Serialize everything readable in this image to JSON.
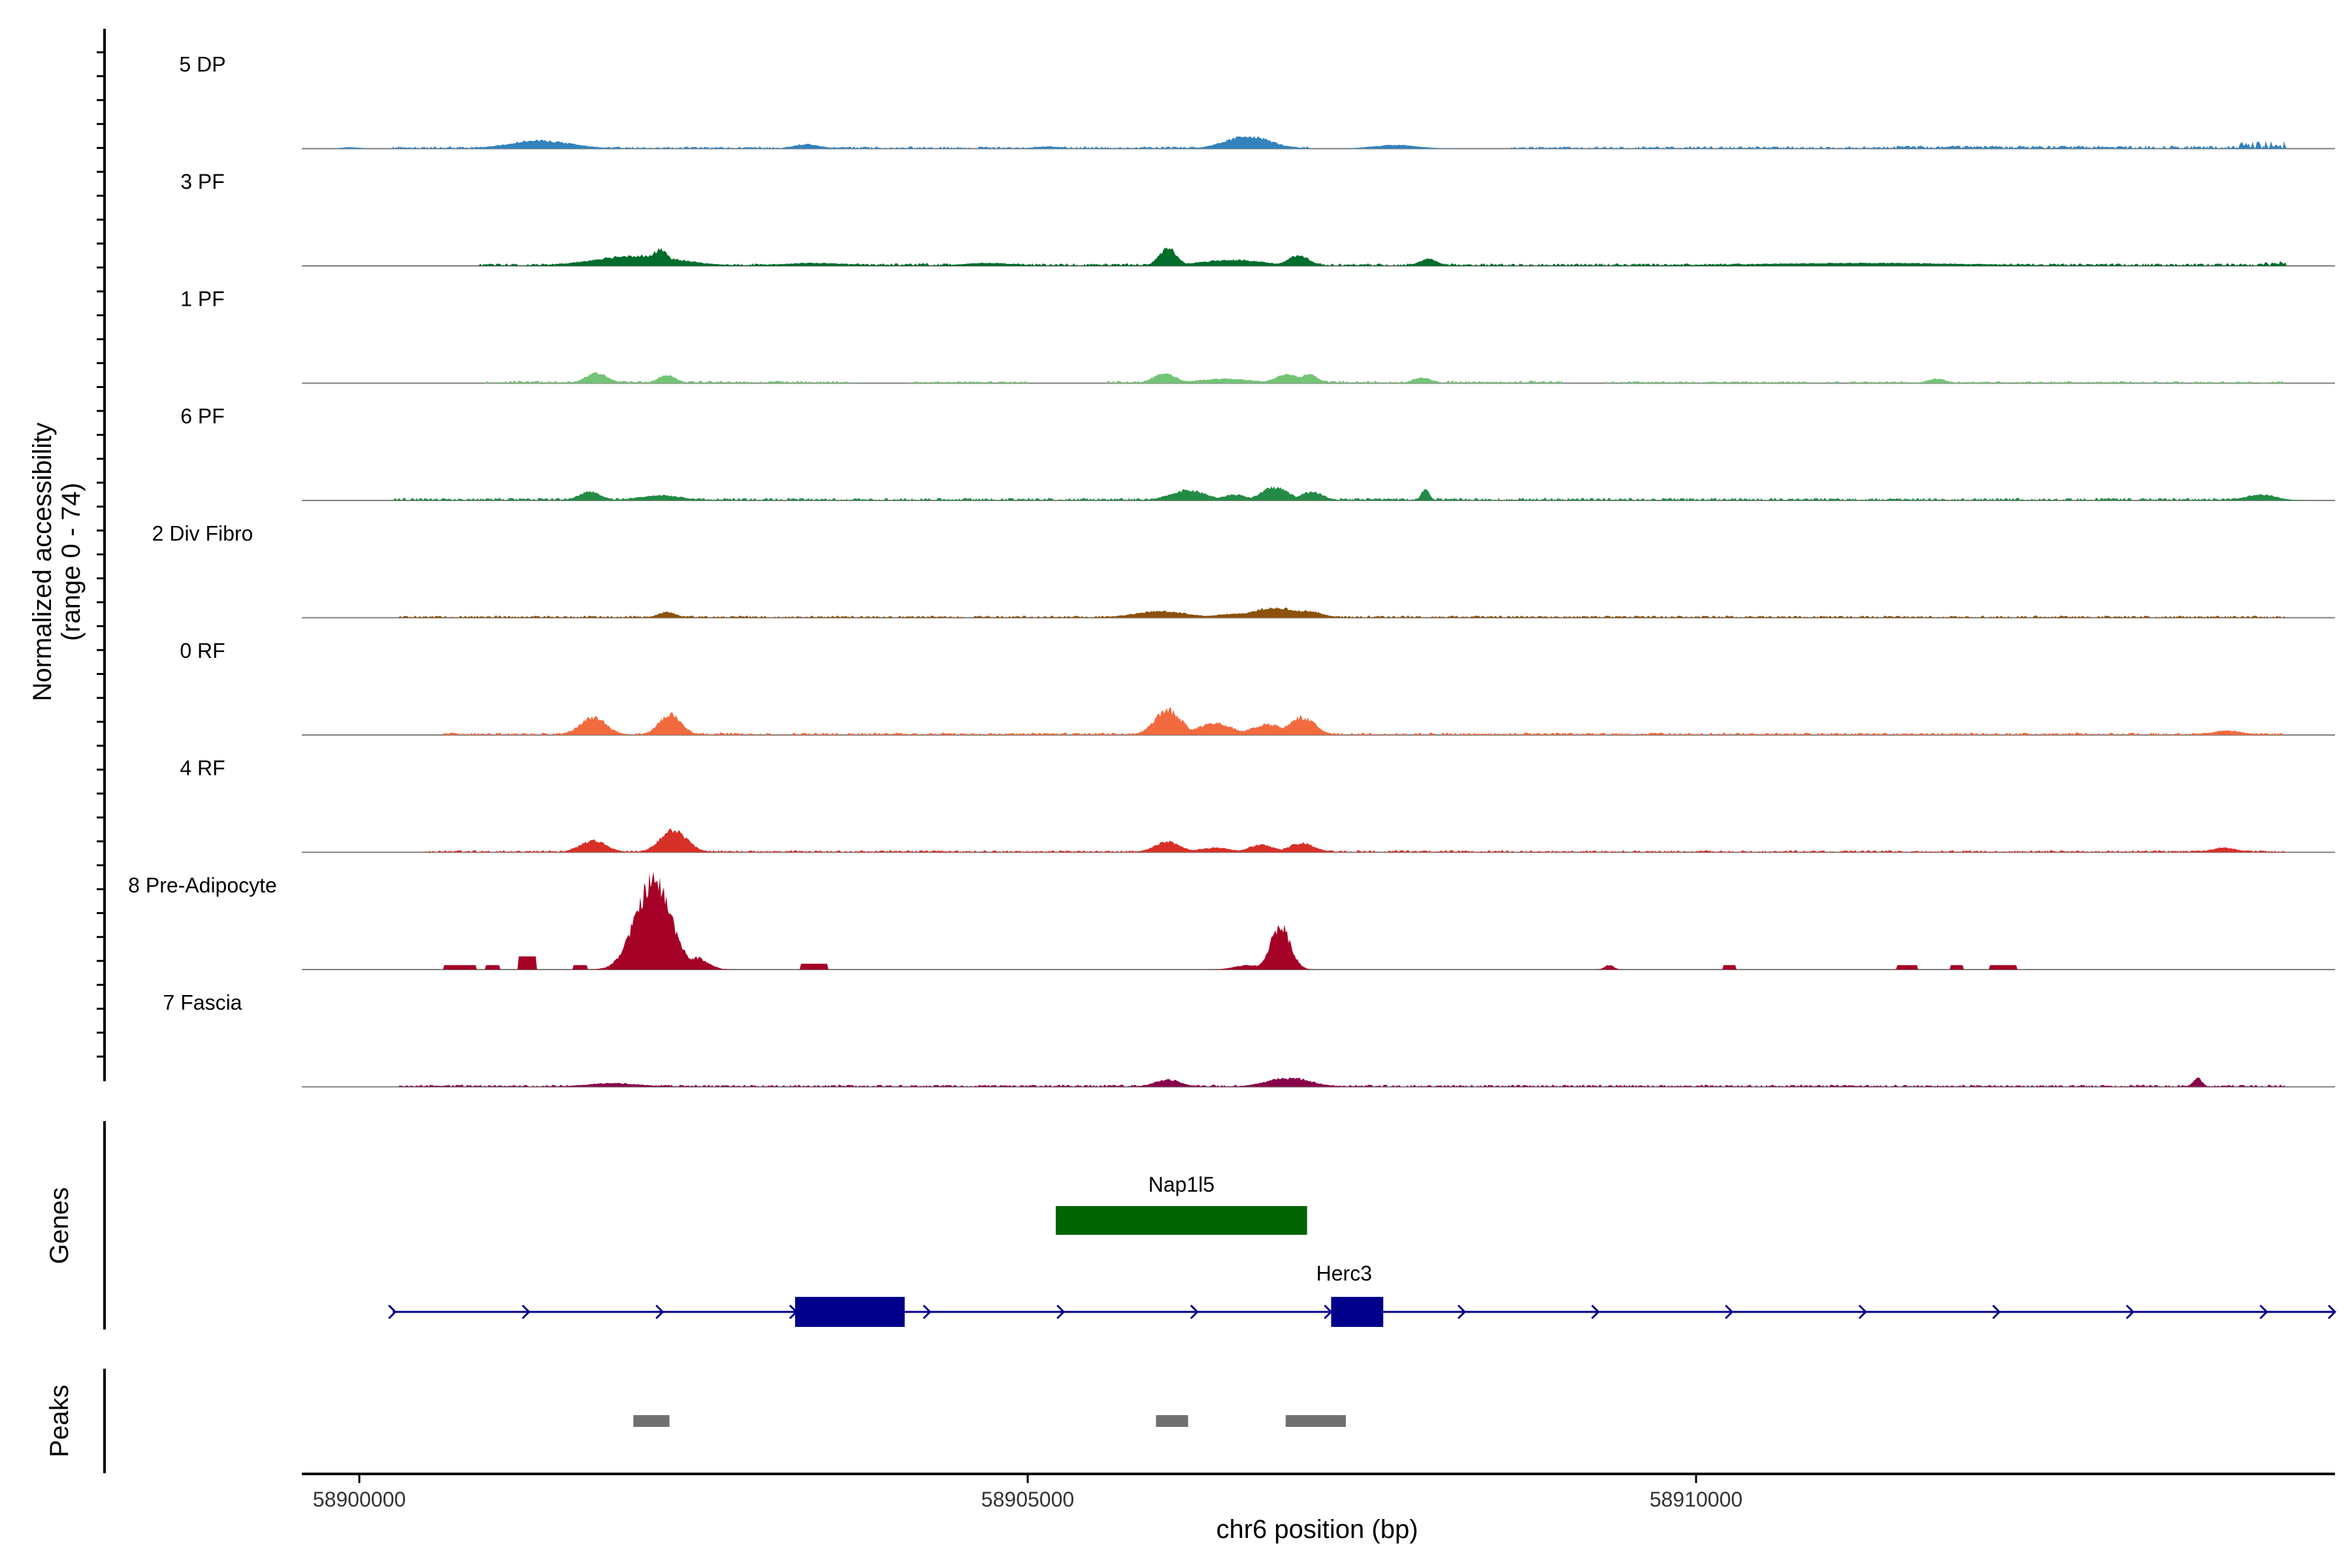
{
  "chart_data": {
    "type": "area",
    "title": "",
    "ylabel_line1": "Normalized accessibility",
    "ylabel_line2": "(range 0 - 74)",
    "xlabel": "chr6 position (bp)",
    "y_range": [
      0,
      74
    ],
    "x_range": [
      58899570,
      58914780
    ],
    "x_ticks": [
      {
        "value": 58900000,
        "label": "58900000"
      },
      {
        "value": 58905000,
        "label": "58905000"
      },
      {
        "value": 58910000,
        "label": "58910000"
      }
    ],
    "genes_label": "Genes",
    "peaks_label": "Peaks",
    "tracks": [
      {
        "name": "5 DP",
        "color": "#3182BD",
        "peaks": [
          [
            58899830,
            58900040,
            1.0,
            [
              58900200,
              58900300
            ],
            [
              58900230,
              58900420
            ]
          ],
          [
            58901000,
            58901700,
            5.5,
            [
              58901500,
              58902500
            ]
          ],
          [
            58903200,
            58903500,
            3,
            [
              58903200,
              58903500
            ]
          ],
          [
            58905000,
            58905300,
            1.5,
            [
              58905000,
              58905300
            ]
          ],
          [
            58906400,
            58906900,
            8.5,
            [
              58906500,
              58907100
            ]
          ],
          [
            58907500,
            58908000,
            2.5,
            [
              58907500,
              58908000
            ]
          ]
        ],
        "bands": [
          [
            58900250,
            58907100,
            1.2
          ],
          [
            58908600,
            58913200,
            1.3
          ],
          [
            58911500,
            58914400,
            1.8
          ],
          [
            58914050,
            58914410,
            4.5
          ]
        ]
      },
      {
        "name": "3 PF",
        "color": "#006D2C",
        "peaks": [
          [
            58901600,
            58902550,
            7,
            [
              58901000,
              58902600
            ]
          ],
          [
            58902150,
            58902350,
            11,
            [
              58902000,
              58902400
            ]
          ],
          [
            58903000,
            58903800,
            2,
            [
              58903000,
              58903800
            ]
          ],
          [
            58904400,
            58905000,
            2,
            [
              58904400,
              58905000
            ]
          ],
          [
            58905950,
            58906150,
            12,
            [
              58905900,
              58906300
            ]
          ],
          [
            58906150,
            58906900,
            4,
            [
              58906000,
              58907000
            ]
          ],
          [
            58906900,
            58907150,
            7,
            [
              58906700,
              58907200
            ]
          ],
          [
            58907900,
            58908100,
            5,
            [
              58907700,
              58908300
            ]
          ],
          [
            58910000,
            58912500,
            2,
            [
              58911500,
              58912600
            ]
          ]
        ],
        "bands": [
          [
            58900900,
            58914400,
            1.5
          ],
          [
            58914260,
            58914410,
            3
          ]
        ]
      },
      {
        "name": "1 PF",
        "color": "#74C476",
        "peaks": [
          [
            58901650,
            58901900,
            7,
            [
              58901300,
              58902000
            ]
          ],
          [
            58902200,
            58902400,
            5.5,
            [
              58902000,
              58902600
            ]
          ],
          [
            58905900,
            58906150,
            7,
            [
              58905800,
              58906200
            ]
          ],
          [
            58906150,
            58906800,
            3,
            [
              58906100,
              58906900
            ]
          ],
          [
            58906800,
            58907100,
            6,
            [
              58906750,
              58907100
            ]
          ],
          [
            58907000,
            58907200,
            6,
            [
              58907000,
              58907200
            ]
          ],
          [
            58907850,
            58908050,
            4,
            [
              58907700,
              58908100
            ]
          ],
          [
            58911700,
            58911900,
            3,
            [
              58911650,
              58911950
            ]
          ]
        ],
        "bands": [
          [
            58900950,
            58903700,
            1.5
          ],
          [
            58904100,
            58905000,
            1.2
          ],
          [
            58905600,
            58909000,
            1.5
          ],
          [
            58909300,
            58912500,
            1.2
          ],
          [
            58912500,
            58914400,
            1.2
          ]
        ]
      },
      {
        "name": "6 PF",
        "color": "#238B45",
        "peaks": [
          [
            58901600,
            58901850,
            6,
            [
              58901400,
              58902000
            ]
          ],
          [
            58902000,
            58902500,
            3.5,
            [
              58902000,
              58902500
            ]
          ],
          [
            58906000,
            58906400,
            7,
            [
              58905900,
              58906400
            ]
          ],
          [
            58906400,
            58906700,
            4,
            [
              58906400,
              58906700
            ]
          ],
          [
            58906700,
            58907000,
            9,
            [
              58906700,
              58907000
            ]
          ],
          [
            58907000,
            58907250,
            6,
            [
              58907000,
              58907300
            ]
          ],
          [
            58907950,
            58908000,
            8,
            [
              58907700,
              58908200
            ]
          ],
          [
            58914050,
            58914400,
            4,
            [
              58913600,
              58914400
            ]
          ]
        ],
        "bands": [
          [
            58900260,
            58914400,
            1.5
          ]
        ]
      },
      {
        "name": "2 Div Fibro",
        "color": "#8C510A",
        "peaks": [
          [
            58902200,
            58902400,
            4,
            [
              58902000,
              58902600
            ]
          ],
          [
            58905700,
            58906300,
            4.5,
            [
              58905800,
              58906300
            ]
          ],
          [
            58906300,
            58907000,
            3,
            [
              58906300,
              58907000
            ]
          ],
          [
            58906600,
            58907100,
            7,
            [
              58906700,
              58907100
            ]
          ],
          [
            58906900,
            58907250,
            5,
            [
              58906900,
              58907250
            ]
          ]
        ],
        "bands": [
          [
            58900300,
            58914400,
            1.2
          ]
        ]
      },
      {
        "name": "0 RF",
        "color": "#F16B3E",
        "peaks": [
          [
            58901600,
            58901900,
            12,
            [
              58901400,
              58902000
            ]
          ],
          [
            58902200,
            58902450,
            14,
            [
              58902000,
              58902600
            ]
          ],
          [
            58905900,
            58906200,
            17,
            [
              58905800,
              58906300
            ]
          ],
          [
            58906200,
            58906600,
            8,
            [
              58906200,
              58906700
            ]
          ],
          [
            58906600,
            58907000,
            7,
            [
              58906600,
              58907000
            ]
          ],
          [
            58906900,
            58907200,
            12,
            [
              58906900,
              58907300
            ]
          ],
          [
            58913800,
            58914150,
            3,
            [
              58913700,
              58914200
            ]
          ]
        ],
        "bands": [
          [
            58900600,
            58914400,
            1.4
          ]
        ]
      },
      {
        "name": "4 RF",
        "color": "#D73027",
        "peaks": [
          [
            58901600,
            58901900,
            8,
            [
              58901300,
              58902100
            ]
          ],
          [
            58902200,
            58902500,
            15,
            [
              58902000,
              58902500
            ]
          ],
          [
            58905900,
            58906200,
            7,
            [
              58905700,
              58906300
            ]
          ],
          [
            58906200,
            58906600,
            3,
            [
              58906200,
              58906600
            ]
          ],
          [
            58906600,
            58906900,
            5,
            [
              58906600,
              58906900
            ]
          ],
          [
            58906900,
            58907200,
            6,
            [
              58906900,
              58907200
            ]
          ],
          [
            58913800,
            58914100,
            3,
            [
              58913800,
              58914100
            ]
          ]
        ],
        "bands": [
          [
            58900500,
            58914400,
            1.2
          ]
        ]
      },
      {
        "name": "8 Pre-Adipocyte",
        "color": "#A50026",
        "blocks": [
          [
            58900630,
            58900870,
            3
          ],
          [
            58900950,
            58901050,
            3
          ],
          [
            58901190,
            58901320,
            9
          ],
          [
            58901600,
            58901700,
            3
          ],
          [
            58901950,
            58902150,
            5
          ]
        ],
        "peaks": [
          [
            58902000,
            58902400,
            60,
            [
              58902000,
              58902400
            ]
          ],
          [
            58902400,
            58902650,
            8,
            [
              58902400,
              58902650
            ]
          ],
          [
            58906500,
            58906800,
            3,
            [
              58906500,
              58906800
            ]
          ],
          [
            58906780,
            58907000,
            30,
            [
              58906800,
              58907000
            ]
          ],
          [
            58909300,
            58909400,
            3,
            [
              58909300,
              58909400
            ]
          ]
        ],
        "extra_blocks": [
          [
            58903300,
            58903500,
            4
          ],
          [
            58910200,
            58910300,
            3
          ],
          [
            58911500,
            58911650,
            3
          ],
          [
            58911900,
            58912000,
            3
          ],
          [
            58912200,
            58912400,
            3
          ]
        ]
      },
      {
        "name": "7 Fascia",
        "color": "#88004A",
        "peaks": [
          [
            58901600,
            58902200,
            2.5,
            [
              58901300,
              58902000
            ]
          ],
          [
            58905900,
            58906200,
            5,
            [
              58905900,
              58906300
            ]
          ],
          [
            58906700,
            58907200,
            6,
            [
              58906700,
              58907200
            ]
          ],
          [
            58913700,
            58913800,
            6,
            [
              58913600,
              58914000
            ]
          ]
        ],
        "bands": [
          [
            58900300,
            58914400,
            1.2
          ]
        ]
      }
    ],
    "genes": [
      {
        "name": "Nap1l5",
        "strand": "",
        "start": 58905210,
        "end": 58907090,
        "color": "#006400",
        "row": 1,
        "exons": [
          [
            58905210,
            58907090
          ]
        ]
      },
      {
        "name": "Herc3",
        "strand": "+",
        "start": 58900250,
        "end": 58914780,
        "color": "#00008B",
        "row": 2,
        "exons": [
          [
            58903260,
            58904080
          ],
          [
            58907270,
            58907660
          ]
        ]
      }
    ],
    "peak_regions": [
      [
        58902050,
        58902320
      ],
      [
        58905960,
        58906200
      ],
      [
        58906930,
        58907380
      ]
    ]
  }
}
